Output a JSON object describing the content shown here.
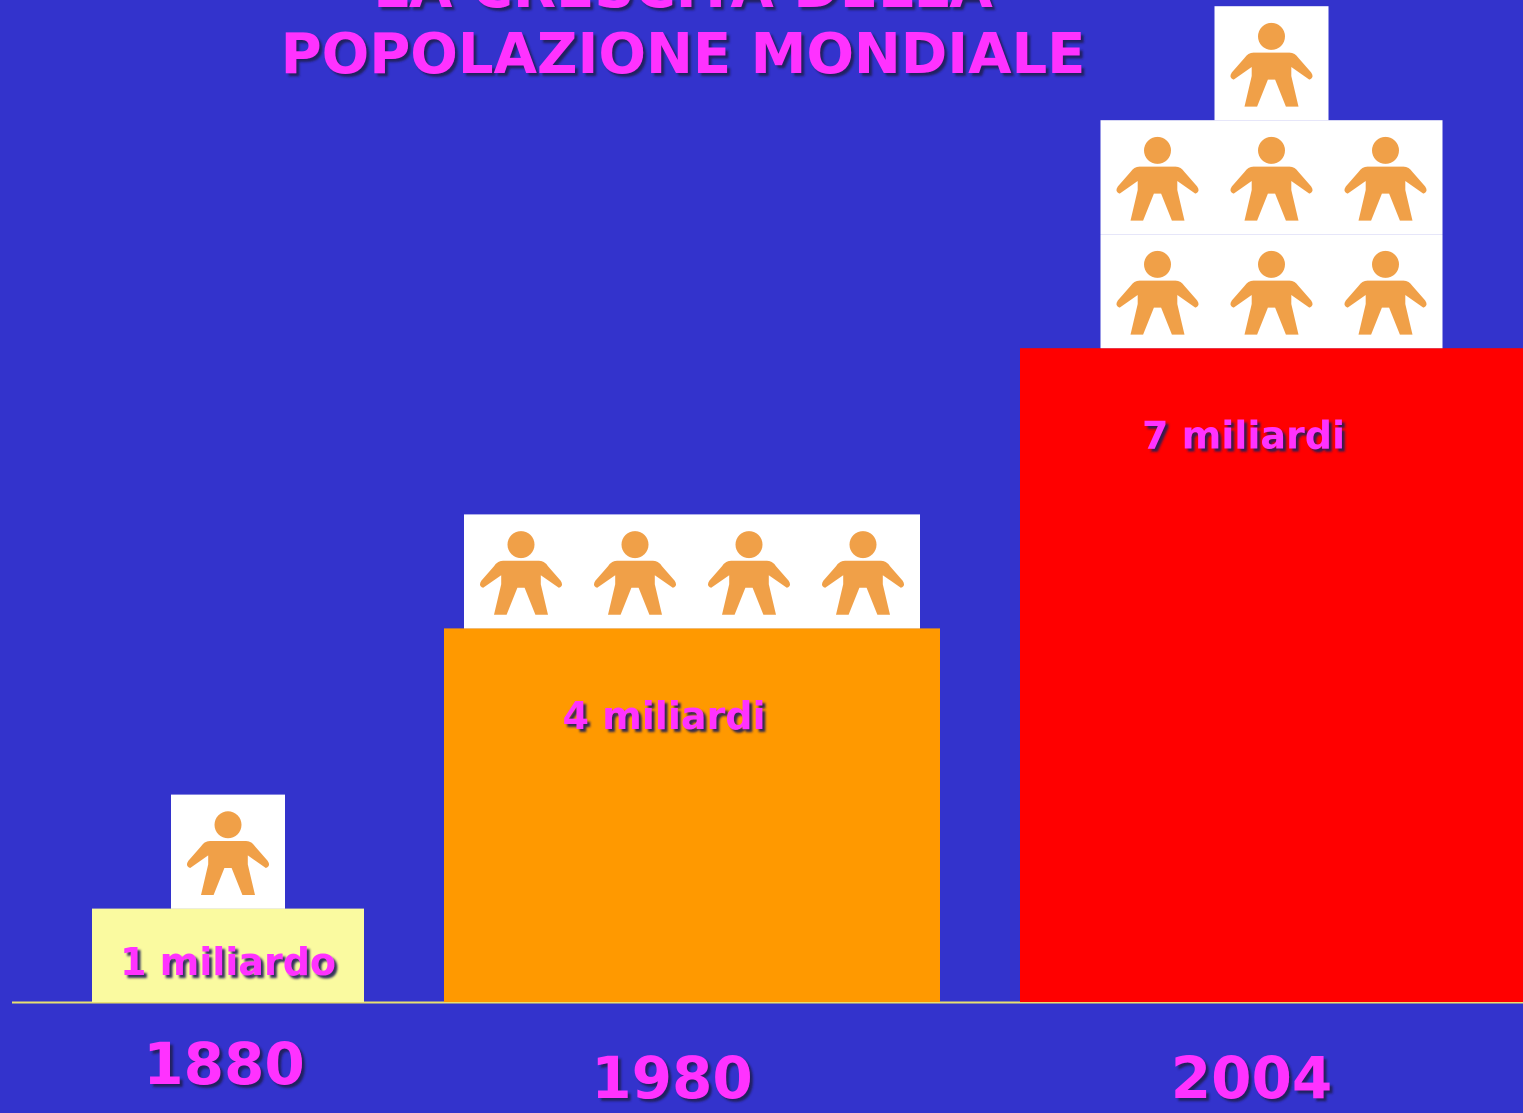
{
  "chart_data": {
    "type": "pictogram-bar",
    "title": [
      "LA CRESCITA DELLA",
      "POPOLAZIONE MONDIALE"
    ],
    "categories": [
      "1880",
      "1980",
      "2004"
    ],
    "values": [
      1,
      4,
      7
    ],
    "value_labels": [
      "1 miliardo",
      "4 miliardi",
      "7 miliardi"
    ],
    "colors": [
      "#fafaa0",
      "#ff9900",
      "#ff0000"
    ],
    "icon_color": "#f0a048"
  }
}
